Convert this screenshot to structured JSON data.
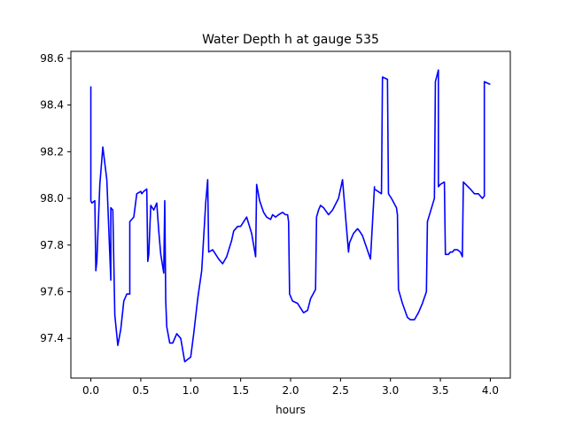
{
  "chart_data": {
    "type": "line",
    "title": "Water Depth h at gauge 535",
    "xlabel": "hours",
    "ylabel": "",
    "xlim": [
      -0.2,
      4.2
    ],
    "ylim": [
      97.23,
      98.63
    ],
    "x_ticks": [
      0.0,
      0.5,
      1.0,
      1.5,
      2.0,
      2.5,
      3.0,
      3.5,
      4.0
    ],
    "x_tick_labels": [
      "0.0",
      "0.5",
      "1.0",
      "1.5",
      "2.0",
      "2.5",
      "3.0",
      "3.5",
      "4.0"
    ],
    "y_ticks": [
      97.4,
      97.6,
      97.8,
      98.0,
      98.2,
      98.4,
      98.6
    ],
    "y_tick_labels": [
      "97.4",
      "97.6",
      "97.8",
      "98.0",
      "98.2",
      "98.4",
      "98.6"
    ],
    "grid": false,
    "series": [
      {
        "color": "#0000ff",
        "x": [
          0.0,
          0.0,
          0.01,
          0.04,
          0.05,
          0.06,
          0.09,
          0.12,
          0.16,
          0.2,
          0.2,
          0.22,
          0.24,
          0.27,
          0.3,
          0.33,
          0.36,
          0.39,
          0.39,
          0.43,
          0.46,
          0.5,
          0.51,
          0.53,
          0.56,
          0.57,
          0.58,
          0.6,
          0.63,
          0.66,
          0.68,
          0.7,
          0.73,
          0.74,
          0.75,
          0.76,
          0.79,
          0.82,
          0.86,
          0.9,
          0.94,
          0.97,
          1.0,
          1.03,
          1.07,
          1.11,
          1.15,
          1.17,
          1.18,
          1.22,
          1.28,
          1.32,
          1.36,
          1.41,
          1.43,
          1.47,
          1.5,
          1.56,
          1.61,
          1.65,
          1.66,
          1.69,
          1.73,
          1.76,
          1.8,
          1.82,
          1.85,
          1.88,
          1.92,
          1.95,
          1.97,
          1.98,
          1.99,
          2.02,
          2.07,
          2.1,
          2.13,
          2.17,
          2.2,
          2.25,
          2.26,
          2.28,
          2.3,
          2.33,
          2.38,
          2.42,
          2.48,
          2.52,
          2.58,
          2.59,
          2.63,
          2.67,
          2.69,
          2.72,
          2.76,
          2.8,
          2.84,
          2.84,
          2.91,
          2.92,
          2.97,
          2.98,
          3.01,
          3.06,
          3.07,
          3.08,
          3.12,
          3.17,
          3.2,
          3.24,
          3.28,
          3.32,
          3.36,
          3.37,
          3.44,
          3.45,
          3.48,
          3.48,
          3.5,
          3.54,
          3.55,
          3.58,
          3.6,
          3.62,
          3.64,
          3.67,
          3.7,
          3.72,
          3.73,
          3.8,
          3.84,
          3.88,
          3.9,
          3.92,
          3.94,
          3.94,
          3.99,
          4.0
        ],
        "y": [
          98.48,
          97.99,
          97.98,
          97.99,
          97.69,
          97.73,
          98.06,
          98.22,
          98.08,
          97.65,
          97.96,
          97.95,
          97.5,
          97.37,
          97.44,
          97.56,
          97.59,
          97.59,
          97.9,
          97.92,
          98.02,
          98.03,
          98.02,
          98.03,
          98.04,
          97.73,
          97.76,
          97.97,
          97.95,
          97.98,
          97.86,
          97.76,
          97.68,
          97.99,
          97.56,
          97.45,
          97.38,
          97.38,
          97.42,
          97.4,
          97.3,
          97.31,
          97.32,
          97.42,
          97.57,
          97.69,
          97.98,
          98.08,
          97.77,
          97.78,
          97.74,
          97.72,
          97.75,
          97.82,
          97.86,
          97.88,
          97.88,
          97.92,
          97.85,
          97.75,
          98.06,
          97.99,
          97.94,
          97.92,
          97.91,
          97.93,
          97.92,
          97.93,
          97.94,
          97.93,
          97.93,
          97.9,
          97.59,
          97.56,
          97.55,
          97.53,
          97.51,
          97.52,
          97.57,
          97.61,
          97.92,
          97.95,
          97.97,
          97.96,
          97.93,
          97.95,
          98.0,
          98.08,
          97.77,
          97.81,
          97.85,
          97.87,
          97.86,
          97.84,
          97.79,
          97.74,
          98.05,
          98.04,
          98.02,
          98.52,
          98.51,
          98.02,
          98.0,
          97.96,
          97.93,
          97.61,
          97.55,
          97.49,
          97.48,
          97.48,
          97.51,
          97.55,
          97.6,
          97.9,
          98.0,
          98.5,
          98.55,
          98.05,
          98.06,
          98.07,
          97.76,
          97.76,
          97.77,
          97.77,
          97.78,
          97.78,
          97.77,
          97.75,
          98.07,
          98.04,
          98.02,
          98.02,
          98.01,
          98.0,
          98.01,
          98.5,
          98.49,
          98.49
        ]
      }
    ]
  }
}
